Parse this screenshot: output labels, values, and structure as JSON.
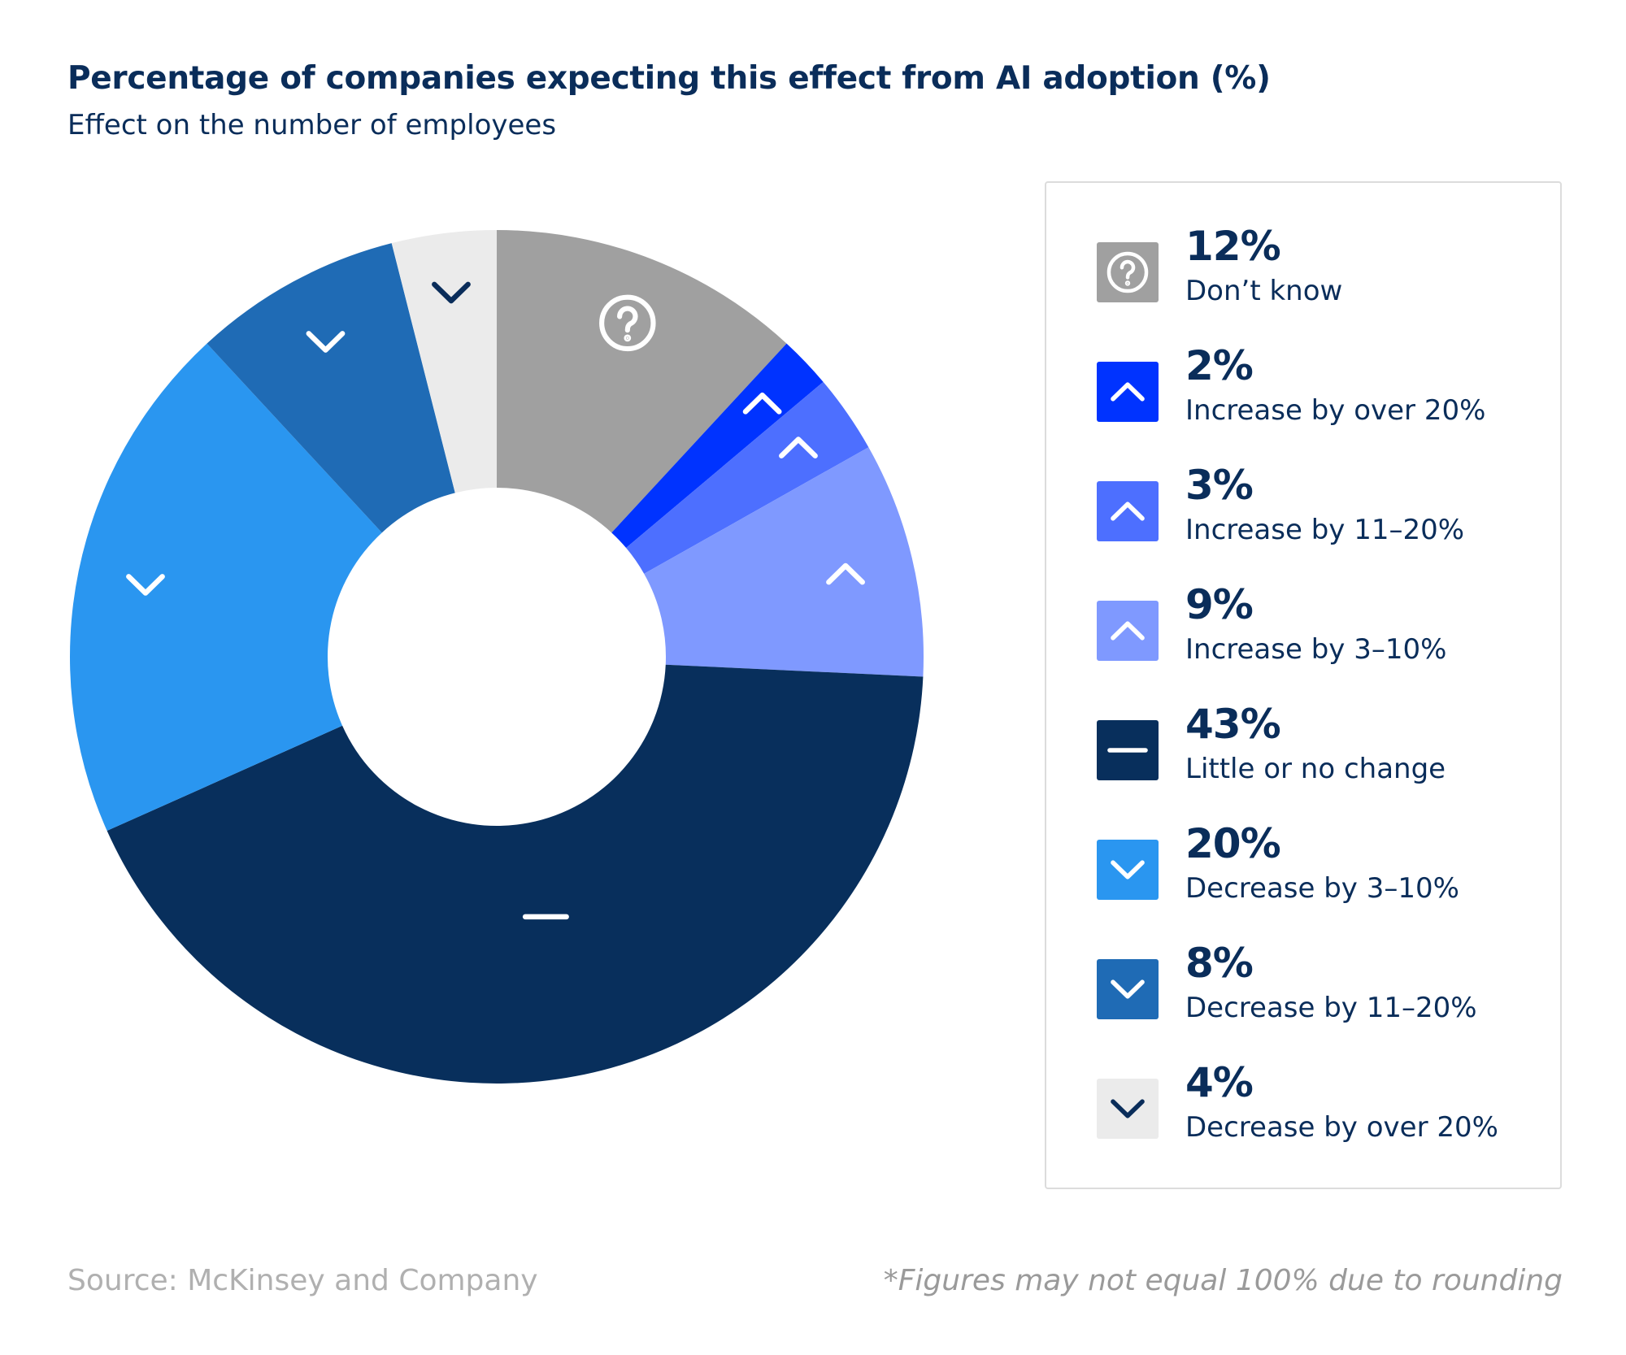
{
  "chart_data": {
    "type": "pie",
    "donut": true,
    "title": "Percentage of companies expecting this effect from AI adoption (%)",
    "subtitle": "Effect on the number of employees",
    "legend_position": "right",
    "slices": [
      {
        "label": "Don’t know",
        "value": 12,
        "pct_label": "12%",
        "color": "#a0a0a0",
        "icon": "question-icon",
        "icon_color": "#ffffff"
      },
      {
        "label": "Increase by over 20%",
        "value": 2,
        "pct_label": "2%",
        "color": "#0033ff",
        "icon": "chevron-up-icon",
        "icon_color": "#ffffff"
      },
      {
        "label": "Increase by 11–20%",
        "value": 3,
        "pct_label": "3%",
        "color": "#4d6fff",
        "icon": "chevron-up-icon",
        "icon_color": "#ffffff"
      },
      {
        "label": "Increase by 3–10%",
        "value": 9,
        "pct_label": "9%",
        "color": "#7f99ff",
        "icon": "chevron-up-icon",
        "icon_color": "#ffffff"
      },
      {
        "label": "Little or no change",
        "value": 43,
        "pct_label": "43%",
        "color": "#082f5c",
        "icon": "dash-icon",
        "icon_color": "#ffffff"
      },
      {
        "label": "Decrease by 3–10%",
        "value": 20,
        "pct_label": "20%",
        "color": "#2a96f0",
        "icon": "chevron-down-icon",
        "icon_color": "#ffffff"
      },
      {
        "label": "Decrease by 11–20%",
        "value": 8,
        "pct_label": "8%",
        "color": "#1f6bb5",
        "icon": "chevron-down-icon",
        "icon_color": "#ffffff"
      },
      {
        "label": "Decrease by over 20%",
        "value": 4,
        "pct_label": "4%",
        "color": "#ebebeb",
        "icon": "chevron-down-icon",
        "icon_color": "#0a2d5a"
      }
    ]
  },
  "footer": {
    "source": "Source: McKinsey and Company",
    "note": "*Figures may not equal 100% due to rounding"
  }
}
